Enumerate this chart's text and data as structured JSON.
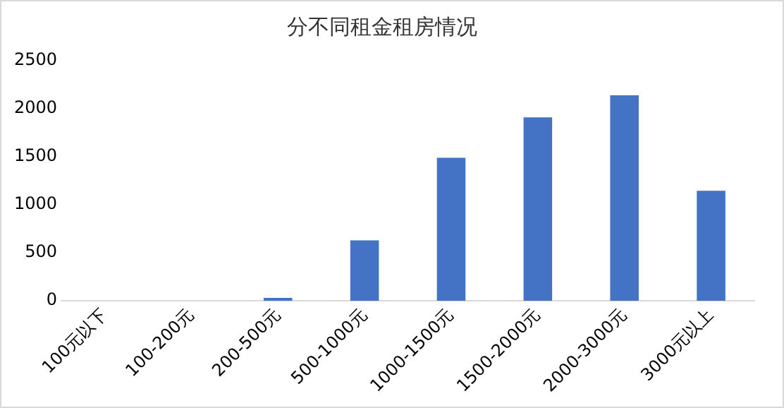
{
  "chart_data": {
    "type": "bar",
    "title": "分不同租金租房情况",
    "categories": [
      "100元以下",
      "100-200元",
      "200-500元",
      "500-1000元",
      "1000-1500元",
      "1500-2000元",
      "2000-3000元",
      "3000元以上"
    ],
    "values": [
      0,
      0,
      30,
      630,
      1490,
      1910,
      2140,
      1145
    ],
    "color": "#4472c4",
    "ylim": [
      0,
      2500
    ],
    "yticks": [
      0,
      500,
      1000,
      1500,
      2000,
      2500
    ],
    "grid": false,
    "legend": false
  }
}
